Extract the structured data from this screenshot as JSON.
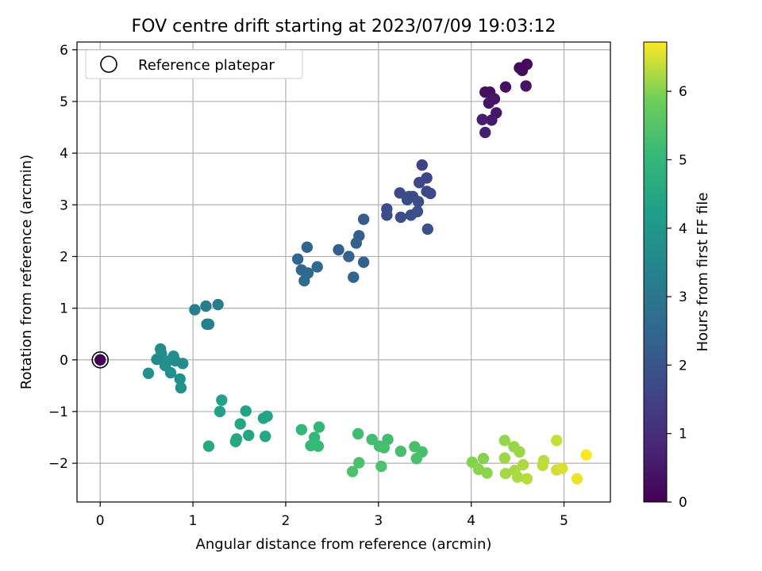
{
  "chart_data": {
    "type": "scatter",
    "title": "FOV centre drift starting at 2023/07/09 19:03:12",
    "xlabel": "Angular distance from reference (arcmin)",
    "ylabel": "Rotation from reference (arcmin)",
    "xlim": [
      -0.25,
      5.5
    ],
    "ylim": [
      -2.75,
      6.15
    ],
    "xticks": [
      0,
      1,
      2,
      3,
      4,
      5
    ],
    "yticks": [
      -2,
      -1,
      0,
      1,
      2,
      3,
      4,
      5,
      6
    ],
    "grid": true,
    "legend": {
      "position": "top-left",
      "entries": [
        "Reference platepar"
      ]
    },
    "colorbar": {
      "label": "Hours from first FF file",
      "range": [
        0,
        6.72
      ],
      "ticks": [
        0,
        1,
        2,
        3,
        4,
        5,
        6
      ],
      "colormap": "viridis"
    },
    "reference_point": {
      "x": 0,
      "y": 0,
      "label": "Reference platepar"
    },
    "series": [
      {
        "points": [
          {
            "x": 0.0,
            "y": 0.0,
            "h": 0.0
          },
          {
            "x": 4.15,
            "y": 5.18,
            "h": 0.3
          },
          {
            "x": 4.2,
            "y": 5.18,
            "h": 0.32
          },
          {
            "x": 4.37,
            "y": 5.28,
            "h": 0.35
          },
          {
            "x": 4.52,
            "y": 5.65,
            "h": 0.22
          },
          {
            "x": 4.55,
            "y": 5.6,
            "h": 0.24
          },
          {
            "x": 4.6,
            "y": 5.72,
            "h": 0.2
          },
          {
            "x": 4.59,
            "y": 5.3,
            "h": 0.4
          },
          {
            "x": 4.19,
            "y": 4.97,
            "h": 0.42
          },
          {
            "x": 4.25,
            "y": 5.05,
            "h": 0.45
          },
          {
            "x": 4.27,
            "y": 4.78,
            "h": 0.5
          },
          {
            "x": 4.22,
            "y": 4.64,
            "h": 0.55
          },
          {
            "x": 4.12,
            "y": 4.65,
            "h": 0.6
          },
          {
            "x": 4.15,
            "y": 4.4,
            "h": 0.65
          },
          {
            "x": 3.47,
            "y": 3.77,
            "h": 1.55
          },
          {
            "x": 3.52,
            "y": 3.52,
            "h": 1.6
          },
          {
            "x": 3.44,
            "y": 3.43,
            "h": 1.62
          },
          {
            "x": 3.52,
            "y": 3.26,
            "h": 1.65
          },
          {
            "x": 3.56,
            "y": 3.22,
            "h": 1.68
          },
          {
            "x": 3.23,
            "y": 3.23,
            "h": 1.7
          },
          {
            "x": 3.33,
            "y": 3.16,
            "h": 1.72
          },
          {
            "x": 3.37,
            "y": 3.16,
            "h": 1.74
          },
          {
            "x": 3.31,
            "y": 3.1,
            "h": 1.76
          },
          {
            "x": 3.43,
            "y": 3.06,
            "h": 1.78
          },
          {
            "x": 3.09,
            "y": 2.92,
            "h": 1.8
          },
          {
            "x": 3.09,
            "y": 2.8,
            "h": 1.82
          },
          {
            "x": 3.24,
            "y": 2.76,
            "h": 1.84
          },
          {
            "x": 3.35,
            "y": 2.8,
            "h": 1.86
          },
          {
            "x": 3.42,
            "y": 2.87,
            "h": 1.88
          },
          {
            "x": 3.53,
            "y": 2.53,
            "h": 1.9
          },
          {
            "x": 2.84,
            "y": 2.72,
            "h": 2.2
          },
          {
            "x": 2.79,
            "y": 2.4,
            "h": 2.25
          },
          {
            "x": 2.76,
            "y": 2.26,
            "h": 2.28
          },
          {
            "x": 2.57,
            "y": 2.13,
            "h": 2.3
          },
          {
            "x": 2.68,
            "y": 2.0,
            "h": 2.32
          },
          {
            "x": 2.84,
            "y": 1.89,
            "h": 2.35
          },
          {
            "x": 2.73,
            "y": 1.6,
            "h": 2.4
          },
          {
            "x": 2.23,
            "y": 2.18,
            "h": 2.45
          },
          {
            "x": 2.13,
            "y": 1.95,
            "h": 2.5
          },
          {
            "x": 2.17,
            "y": 1.74,
            "h": 2.52
          },
          {
            "x": 2.24,
            "y": 1.68,
            "h": 2.54
          },
          {
            "x": 2.34,
            "y": 1.8,
            "h": 2.56
          },
          {
            "x": 2.2,
            "y": 1.53,
            "h": 2.58
          },
          {
            "x": 1.02,
            "y": 0.97,
            "h": 3.2
          },
          {
            "x": 1.14,
            "y": 1.04,
            "h": 3.22
          },
          {
            "x": 1.27,
            "y": 1.07,
            "h": 3.25
          },
          {
            "x": 1.15,
            "y": 0.69,
            "h": 3.28
          },
          {
            "x": 1.17,
            "y": 0.69,
            "h": 3.3
          },
          {
            "x": 0.65,
            "y": 0.21,
            "h": 3.6
          },
          {
            "x": 0.66,
            "y": 0.12,
            "h": 3.62
          },
          {
            "x": 0.61,
            "y": 0.01,
            "h": 3.64
          },
          {
            "x": 0.79,
            "y": 0.07,
            "h": 3.66
          },
          {
            "x": 0.81,
            "y": -0.02,
            "h": 3.68
          },
          {
            "x": 0.89,
            "y": -0.07,
            "h": 3.7
          },
          {
            "x": 0.72,
            "y": -0.03,
            "h": 3.72
          },
          {
            "x": 0.7,
            "y": -0.11,
            "h": 3.74
          },
          {
            "x": 0.76,
            "y": -0.25,
            "h": 3.76
          },
          {
            "x": 0.52,
            "y": -0.26,
            "h": 3.78
          },
          {
            "x": 0.86,
            "y": -0.37,
            "h": 3.8
          },
          {
            "x": 0.87,
            "y": -0.54,
            "h": 3.82
          },
          {
            "x": 1.31,
            "y": -0.78,
            "h": 4.3
          },
          {
            "x": 1.29,
            "y": -1.0,
            "h": 4.32
          },
          {
            "x": 1.57,
            "y": -0.99,
            "h": 4.35
          },
          {
            "x": 1.8,
            "y": -1.09,
            "h": 4.38
          },
          {
            "x": 1.76,
            "y": -1.13,
            "h": 4.4
          },
          {
            "x": 1.51,
            "y": -1.24,
            "h": 4.42
          },
          {
            "x": 1.6,
            "y": -1.46,
            "h": 4.44
          },
          {
            "x": 1.78,
            "y": -1.48,
            "h": 4.46
          },
          {
            "x": 1.47,
            "y": -1.53,
            "h": 4.48
          },
          {
            "x": 1.46,
            "y": -1.58,
            "h": 4.5
          },
          {
            "x": 1.17,
            "y": -1.67,
            "h": 4.52
          },
          {
            "x": 2.17,
            "y": -1.35,
            "h": 5.0
          },
          {
            "x": 2.36,
            "y": -1.3,
            "h": 5.02
          },
          {
            "x": 2.31,
            "y": -1.5,
            "h": 5.04
          },
          {
            "x": 2.27,
            "y": -1.66,
            "h": 5.06
          },
          {
            "x": 2.35,
            "y": -1.67,
            "h": 5.08
          },
          {
            "x": 2.78,
            "y": -1.43,
            "h": 5.2
          },
          {
            "x": 2.93,
            "y": -1.54,
            "h": 5.22
          },
          {
            "x": 3.1,
            "y": -1.54,
            "h": 5.24
          },
          {
            "x": 3.01,
            "y": -1.67,
            "h": 5.26
          },
          {
            "x": 3.06,
            "y": -1.7,
            "h": 5.28
          },
          {
            "x": 3.24,
            "y": -1.77,
            "h": 5.3
          },
          {
            "x": 3.39,
            "y": -1.68,
            "h": 5.32
          },
          {
            "x": 3.47,
            "y": -1.78,
            "h": 5.34
          },
          {
            "x": 3.41,
            "y": -1.91,
            "h": 5.36
          },
          {
            "x": 2.79,
            "y": -1.99,
            "h": 5.38
          },
          {
            "x": 3.03,
            "y": -2.06,
            "h": 5.4
          },
          {
            "x": 2.72,
            "y": -2.16,
            "h": 5.42
          },
          {
            "x": 4.01,
            "y": -1.98,
            "h": 6.0
          },
          {
            "x": 4.13,
            "y": -1.91,
            "h": 6.02
          },
          {
            "x": 4.08,
            "y": -2.12,
            "h": 6.04
          },
          {
            "x": 4.17,
            "y": -2.19,
            "h": 6.06
          },
          {
            "x": 4.36,
            "y": -1.56,
            "h": 6.1
          },
          {
            "x": 4.46,
            "y": -1.68,
            "h": 6.12
          },
          {
            "x": 4.52,
            "y": -1.78,
            "h": 6.14
          },
          {
            "x": 4.36,
            "y": -1.9,
            "h": 6.16
          },
          {
            "x": 4.37,
            "y": -2.2,
            "h": 6.2
          },
          {
            "x": 4.47,
            "y": -2.14,
            "h": 6.22
          },
          {
            "x": 4.5,
            "y": -2.27,
            "h": 6.24
          },
          {
            "x": 4.56,
            "y": -2.03,
            "h": 6.26
          },
          {
            "x": 4.6,
            "y": -2.3,
            "h": 6.3
          },
          {
            "x": 4.78,
            "y": -1.95,
            "h": 6.32
          },
          {
            "x": 4.77,
            "y": -2.04,
            "h": 6.34
          },
          {
            "x": 4.92,
            "y": -1.56,
            "h": 6.4
          },
          {
            "x": 4.92,
            "y": -2.13,
            "h": 6.45
          },
          {
            "x": 4.98,
            "y": -2.1,
            "h": 6.5
          },
          {
            "x": 5.14,
            "y": -2.3,
            "h": 6.6
          },
          {
            "x": 5.24,
            "y": -1.84,
            "h": 6.7
          }
        ]
      }
    ]
  }
}
